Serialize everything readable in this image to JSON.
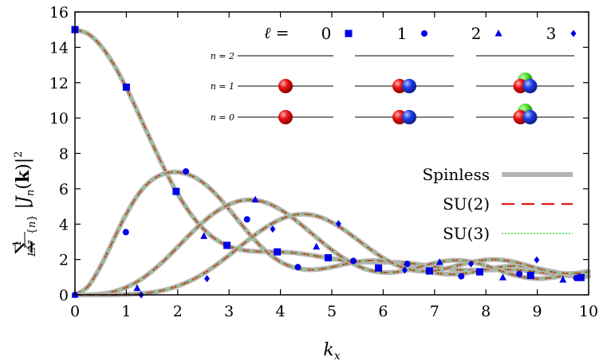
{
  "chart_data": {
    "type": "line",
    "xlabel": "k_x",
    "ylabel": "1/(LN) Σ_{n} |J_n(k)|^2",
    "xlim": [
      0,
      10
    ],
    "ylim": [
      0,
      16
    ],
    "xticks": [
      "0",
      "1",
      "2",
      "3",
      "4",
      "5",
      "6",
      "7",
      "8",
      "9",
      "10"
    ],
    "yticks": [
      "0",
      "2",
      "4",
      "6",
      "8",
      "10",
      "12",
      "14",
      "16"
    ],
    "grid": false,
    "curves": [
      {
        "name": "ℓ = 0",
        "x": [
          0,
          0.25,
          0.5,
          0.75,
          1,
          1.25,
          1.5,
          1.75,
          2,
          2.25,
          2.5,
          2.75,
          3,
          3.25,
          3.5,
          3.75,
          4,
          4.25,
          4.5,
          4.75,
          5,
          5.25,
          5.5,
          5.75,
          6,
          6.25,
          6.5,
          6.75,
          7,
          7.25,
          7.5,
          7.75,
          8,
          8.25,
          8.5,
          8.75,
          9,
          9.25,
          9.5,
          9.75,
          10
        ],
        "y": [
          15.0,
          14.77,
          14.1,
          13.05,
          11.7,
          10.17,
          8.59,
          7.07,
          5.71,
          4.59,
          3.73,
          3.12,
          2.74,
          2.54,
          2.46,
          2.44,
          2.42,
          2.38,
          2.29,
          2.17,
          2.05,
          1.94,
          1.87,
          1.85,
          1.85,
          1.84,
          1.79,
          1.7,
          1.59,
          1.48,
          1.41,
          1.39,
          1.4,
          1.42,
          1.42,
          1.38,
          1.3,
          1.2,
          1.11,
          1.06,
          1.04
        ]
      },
      {
        "name": "ℓ = 1",
        "x": [
          0,
          0.25,
          0.5,
          0.75,
          1,
          1.25,
          1.5,
          1.75,
          2,
          2.25,
          2.5,
          2.75,
          3,
          3.25,
          3.5,
          3.75,
          4,
          4.25,
          4.5,
          4.75,
          5,
          5.25,
          5.5,
          5.75,
          6,
          6.25,
          6.5,
          6.75,
          7,
          7.25,
          7.5,
          7.75,
          8,
          8.25,
          8.5,
          8.75,
          9,
          9.25,
          9.5,
          9.75,
          10
        ],
        "y": [
          0.0,
          0.46,
          1.63,
          3.12,
          4.58,
          5.75,
          6.5,
          6.87,
          6.94,
          6.76,
          6.33,
          5.67,
          4.84,
          3.95,
          3.1,
          2.39,
          1.87,
          1.56,
          1.43,
          1.45,
          1.57,
          1.73,
          1.87,
          1.94,
          1.91,
          1.79,
          1.61,
          1.41,
          1.25,
          1.17,
          1.19,
          1.29,
          1.43,
          1.56,
          1.63,
          1.61,
          1.5,
          1.35,
          1.2,
          1.1,
          1.07
        ]
      },
      {
        "name": "ℓ = 2",
        "x": [
          0,
          0.25,
          0.5,
          0.75,
          1,
          1.25,
          1.5,
          1.75,
          2,
          2.25,
          2.5,
          2.75,
          3,
          3.25,
          3.5,
          3.75,
          4,
          4.25,
          4.5,
          4.75,
          5,
          5.25,
          5.5,
          5.75,
          6,
          6.25,
          6.5,
          6.75,
          7,
          7.25,
          7.5,
          7.75,
          8,
          8.25,
          8.5,
          8.75,
          9,
          9.25,
          9.5,
          9.75,
          10
        ],
        "y": [
          0.0,
          0.0,
          0.05,
          0.18,
          0.43,
          0.81,
          1.34,
          1.98,
          2.71,
          3.45,
          4.13,
          4.7,
          5.11,
          5.34,
          5.36,
          5.18,
          4.82,
          4.33,
          3.74,
          3.13,
          2.54,
          2.04,
          1.64,
          1.38,
          1.27,
          1.29,
          1.42,
          1.61,
          1.8,
          1.93,
          1.95,
          1.85,
          1.65,
          1.4,
          1.16,
          0.99,
          0.92,
          0.96,
          1.08,
          1.22,
          1.34
        ]
      },
      {
        "name": "ℓ = 3",
        "x": [
          0,
          0.25,
          0.5,
          0.75,
          1,
          1.25,
          1.5,
          1.75,
          2,
          2.25,
          2.5,
          2.75,
          3,
          3.25,
          3.5,
          3.75,
          4,
          4.25,
          4.5,
          4.75,
          5,
          5.25,
          5.5,
          5.75,
          6,
          6.25,
          6.5,
          6.75,
          7,
          7.25,
          7.5,
          7.75,
          8,
          8.25,
          8.5,
          8.75,
          9,
          9.25,
          9.5,
          9.75,
          10
        ],
        "y": [
          0.0,
          0.0,
          0.0,
          0.0,
          0.02,
          0.06,
          0.14,
          0.28,
          0.5,
          0.8,
          1.2,
          1.69,
          2.24,
          2.82,
          3.38,
          3.88,
          4.27,
          4.51,
          4.56,
          4.42,
          4.1,
          3.65,
          3.12,
          2.58,
          2.09,
          1.7,
          1.44,
          1.34,
          1.37,
          1.51,
          1.7,
          1.87,
          1.98,
          1.99,
          1.89,
          1.71,
          1.5,
          1.32,
          1.22,
          1.22,
          1.31
        ]
      }
    ],
    "markers": [
      {
        "name": "ℓ = 0",
        "symbol": "square",
        "x": [
          0,
          1,
          1.97,
          2.96,
          3.94,
          4.93,
          5.91,
          6.9,
          7.88,
          8.87,
          9.85
        ],
        "y": [
          15.0,
          11.75,
          5.85,
          2.8,
          2.43,
          2.1,
          1.52,
          1.35,
          1.3,
          1.1,
          0.98
        ]
      },
      {
        "name": "ℓ = 1",
        "symbol": "circle",
        "x": [
          0,
          0.99,
          2.16,
          3.35,
          4.34,
          5.42,
          6.47,
          7.52,
          8.65,
          9.76
        ],
        "y": [
          0.0,
          3.55,
          6.98,
          4.27,
          1.57,
          1.92,
          1.75,
          1.05,
          1.18,
          0.95
        ]
      },
      {
        "name": "ℓ = 2",
        "symbol": "triangle",
        "x": [
          0,
          1.21,
          2.51,
          3.51,
          4.7,
          5.9,
          7.1,
          8.33,
          9.5
        ],
        "y": [
          0.0,
          0.38,
          3.32,
          5.38,
          2.72,
          1.5,
          1.85,
          0.98,
          0.85
        ]
      },
      {
        "name": "ℓ = 3",
        "symbol": "diamond",
        "x": [
          1.29,
          2.57,
          3.85,
          5.13,
          6.42,
          7.71,
          8.99
        ],
        "y": [
          0.0,
          0.92,
          3.72,
          4.02,
          1.4,
          1.75,
          1.98
        ]
      }
    ],
    "legend_markers_header": "ℓ =",
    "legend_markers": [
      "0",
      "1",
      "2",
      "3"
    ],
    "legend_lines": [
      {
        "label": "Spinless",
        "color": "#b4b4b4",
        "style": "solid"
      },
      {
        "label": "SU(2)",
        "color": "#e01a1a",
        "style": "dashed"
      },
      {
        "label": "SU(3)",
        "color": "#3ee23e",
        "style": "dotted"
      }
    ],
    "marker_color": "#0000e6",
    "inset": {
      "levels": [
        "n = 2",
        "n = 1",
        "n = 0"
      ],
      "panels": [
        {
          "n1": [
            "red"
          ],
          "n0": [
            "red"
          ]
        },
        {
          "n1": [
            "red",
            "blue"
          ],
          "n0": [
            "red",
            "blue"
          ]
        },
        {
          "n1": [
            "red",
            "blue",
            "green"
          ],
          "n0": [
            "red",
            "blue",
            "green"
          ]
        }
      ],
      "colors": {
        "red": "#e81010",
        "blue": "#1f3fe8",
        "green": "#45e020"
      }
    }
  }
}
